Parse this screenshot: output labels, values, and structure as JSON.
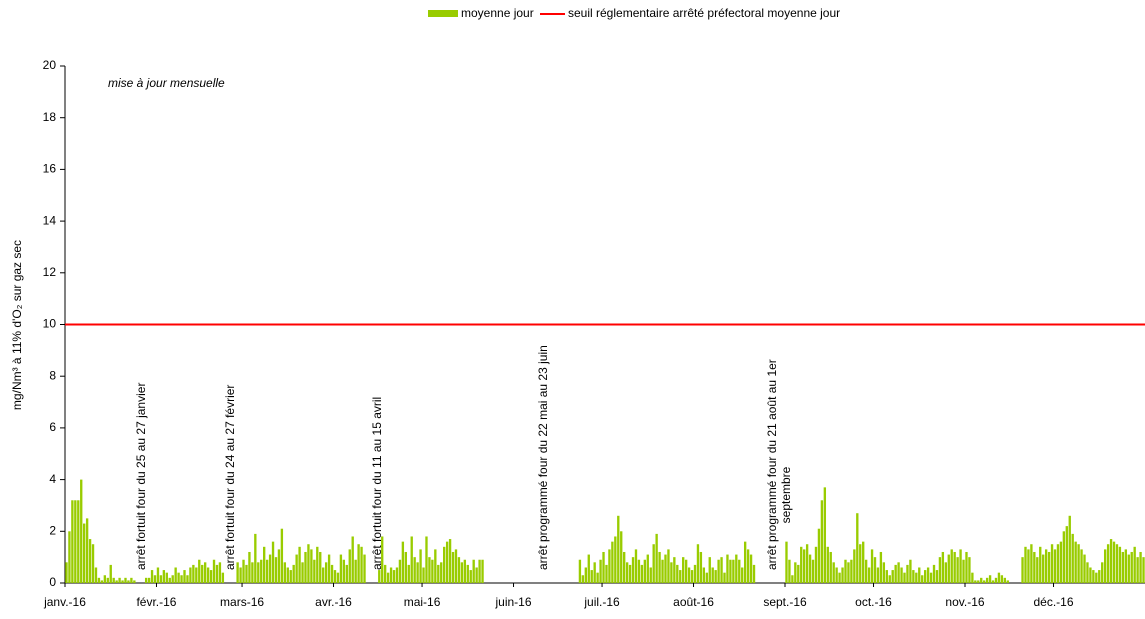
{
  "chart_data": {
    "type": "bar",
    "series": [
      {
        "name": "moyenne jour",
        "color": "#99cc00",
        "values": [
          0.8,
          2,
          3.2,
          3.2,
          3.2,
          4,
          2.3,
          2.5,
          1.7,
          1.5,
          0.6,
          0.2,
          0.1,
          0.3,
          0.2,
          0.7,
          0.2,
          0.1,
          0.2,
          0.1,
          0.2,
          0.1,
          0.2,
          0.1,
          0,
          0,
          0,
          0.2,
          0.2,
          0.5,
          0.3,
          0.6,
          0.3,
          0.5,
          0.4,
          0.2,
          0.3,
          0.6,
          0.4,
          0.3,
          0.5,
          0.3,
          0.6,
          0.7,
          0.6,
          0.9,
          0.7,
          0.8,
          0.6,
          0.5,
          0.9,
          0.7,
          0.8,
          0.4,
          0,
          0,
          0,
          0,
          0.8,
          0.6,
          0.9,
          0.7,
          1.2,
          0.8,
          1.9,
          0.8,
          0.9,
          1.4,
          0.9,
          1.1,
          1.6,
          1.0,
          1.3,
          2.1,
          0.8,
          0.6,
          0.5,
          0.7,
          1.1,
          1.4,
          0.8,
          1.2,
          1.5,
          1.3,
          0.9,
          1.4,
          1.2,
          0.6,
          0.8,
          1.1,
          0.7,
          0.5,
          0.4,
          1.1,
          0.9,
          0.7,
          1.3,
          1.8,
          0.9,
          1.5,
          1.4,
          1.1,
          0,
          0,
          0,
          0,
          0.5,
          1.8,
          0.7,
          0.4,
          0.6,
          0.5,
          0.6,
          0.9,
          1.6,
          1.2,
          0.7,
          1.8,
          1.0,
          0.8,
          1.3,
          0.6,
          1.8,
          1.0,
          0.9,
          1.3,
          0.7,
          0.8,
          1.4,
          1.6,
          1.7,
          1.2,
          1.3,
          1.0,
          0.8,
          0.9,
          0.7,
          0.5,
          0.9,
          0.6,
          0.9,
          0.9,
          0,
          0,
          0,
          0,
          0,
          0,
          0,
          0,
          0,
          0,
          0,
          0,
          0,
          0,
          0,
          0,
          0,
          0,
          0,
          0,
          0,
          0,
          0,
          0,
          0,
          0,
          0,
          0,
          0,
          0,
          0,
          0,
          0.9,
          0.3,
          0.6,
          1.1,
          0.5,
          0.8,
          0.4,
          0.9,
          1.2,
          0.7,
          1.3,
          1.6,
          1.8,
          2.6,
          2.0,
          1.2,
          0.8,
          0.7,
          1.0,
          1.3,
          0.9,
          0.7,
          0.9,
          1.1,
          0.6,
          1.5,
          1.9,
          1.2,
          0.9,
          1.1,
          1.3,
          0.8,
          1.0,
          0.7,
          0.5,
          1.0,
          0.9,
          0.6,
          0.5,
          0.7,
          1.5,
          1.2,
          0.6,
          0.4,
          1.0,
          0.6,
          0.5,
          0.9,
          1.0,
          0.4,
          1.1,
          0.9,
          0.9,
          1.1,
          0.9,
          0.6,
          1.6,
          1.3,
          1.1,
          0.7,
          0,
          0,
          0,
          0,
          0,
          0,
          0,
          0,
          0,
          0,
          1.6,
          0.9,
          0.3,
          0.8,
          0.7,
          1.4,
          1.3,
          1.5,
          1.1,
          0.9,
          1.4,
          2.1,
          3.2,
          3.7,
          1.4,
          1.2,
          0.8,
          0.6,
          0.4,
          0.6,
          0.9,
          0.8,
          0.9,
          1.3,
          2.7,
          1.5,
          1.6,
          0.9,
          0.6,
          1.3,
          1.0,
          0.6,
          1.2,
          0.8,
          0.5,
          0.3,
          0.5,
          0.7,
          0.8,
          0.6,
          0.4,
          0.7,
          0.9,
          0.5,
          0.4,
          0.6,
          0.3,
          0.5,
          0.6,
          0.4,
          0.7,
          0.5,
          1.0,
          1.2,
          0.8,
          1.1,
          1.3,
          1.2,
          1.0,
          1.3,
          0.9,
          1.2,
          1.0,
          0.4,
          0.1,
          0.1,
          0.2,
          0.1,
          0.2,
          0.3,
          0.1,
          0.2,
          0.4,
          0.3,
          0.2,
          0.1,
          0,
          0,
          0,
          0,
          1.0,
          1.4,
          1.3,
          1.5,
          1.2,
          1.0,
          1.4,
          1.1,
          1.3,
          1.2,
          1.5,
          1.3,
          1.5,
          1.6,
          2.0,
          2.2,
          2.6,
          1.9,
          1.6,
          1.5,
          1.3,
          1.1,
          0.8,
          0.6,
          0.5,
          0.4,
          0.5,
          0.8,
          1.3,
          1.5,
          1.7,
          1.6,
          1.5,
          1.4,
          1.2,
          1.3,
          1.1,
          1.2,
          1.4,
          1.0,
          1.2,
          1.0
        ]
      }
    ],
    "categories": [
      "janv.-16",
      null,
      null,
      null,
      null,
      null,
      null,
      null,
      null,
      null,
      null,
      null,
      null,
      null,
      null,
      null,
      null,
      null,
      null,
      null,
      null,
      null,
      null,
      null,
      null,
      null,
      null,
      null,
      null,
      null,
      null,
      "févr.-16",
      null,
      null,
      null,
      null,
      null,
      null,
      null,
      null,
      null,
      null,
      null,
      null,
      null,
      null,
      null,
      null,
      null,
      null,
      null,
      null,
      null,
      null,
      null,
      null,
      null,
      null,
      null,
      null,
      "mars-16",
      null,
      null,
      null,
      null,
      null,
      null,
      null,
      null,
      null,
      null,
      null,
      null,
      null,
      null,
      null,
      null,
      null,
      null,
      null,
      null,
      null,
      null,
      null,
      null,
      null,
      null,
      null,
      null,
      null,
      null,
      "avr.-16",
      null,
      null,
      null,
      null,
      null,
      null,
      null,
      null,
      null,
      null,
      null,
      null,
      null,
      null,
      null,
      null,
      null,
      null,
      null,
      null,
      null,
      null,
      null,
      null,
      null,
      null,
      null,
      null,
      null,
      "mai-16",
      null,
      null,
      null,
      null,
      null,
      null,
      null,
      null,
      null,
      null,
      null,
      null,
      null,
      null,
      null,
      null,
      null,
      null,
      null,
      null,
      null,
      null,
      null,
      null,
      null,
      null,
      null,
      null,
      null,
      null,
      "juin-16",
      null,
      null,
      null,
      null,
      null,
      null,
      null,
      null,
      null,
      null,
      null,
      null,
      null,
      null,
      null,
      null,
      null,
      null,
      null,
      null,
      null,
      null,
      null,
      null,
      null,
      null,
      null,
      null,
      null,
      "juil.-16",
      null,
      null,
      null,
      null,
      null,
      null,
      null,
      null,
      null,
      null,
      null,
      null,
      null,
      null,
      null,
      null,
      null,
      null,
      null,
      null,
      null,
      null,
      null,
      null,
      null,
      null,
      null,
      null,
      null,
      null,
      "août-16",
      null,
      null,
      null,
      null,
      null,
      null,
      null,
      null,
      null,
      null,
      null,
      null,
      null,
      null,
      null,
      null,
      null,
      null,
      null,
      null,
      null,
      null,
      null,
      null,
      null,
      null,
      null,
      null,
      null,
      null,
      "sept.-16",
      null,
      null,
      null,
      null,
      null,
      null,
      null,
      null,
      null,
      null,
      null,
      null,
      null,
      null,
      null,
      null,
      null,
      null,
      null,
      null,
      null,
      null,
      null,
      null,
      null,
      null,
      null,
      null,
      null,
      "oct.-16",
      null,
      null,
      null,
      null,
      null,
      null,
      null,
      null,
      null,
      null,
      null,
      null,
      null,
      null,
      null,
      null,
      null,
      null,
      null,
      null,
      null,
      null,
      null,
      null,
      null,
      null,
      null,
      null,
      null,
      null,
      "nov.-16",
      null,
      null,
      null,
      null,
      null,
      null,
      null,
      null,
      null,
      null,
      null,
      null,
      null,
      null,
      null,
      null,
      null,
      null,
      null,
      null,
      null,
      null,
      null,
      null,
      null,
      null,
      null,
      null,
      null,
      "déc.-16",
      null,
      null,
      null,
      null,
      null,
      null,
      null,
      null,
      null,
      null,
      null,
      null,
      null,
      null,
      null,
      null,
      null,
      null,
      null,
      null,
      null,
      null,
      null,
      null,
      null,
      null,
      null,
      null,
      null,
      null
    ],
    "threshold": {
      "name": "seuil réglementaire arrêté préfectoral moyenne jour",
      "value": 10,
      "color": "#ff0000"
    },
    "ylabel": "mg/Nm³ à 11% d'O₂ sur gaz sec",
    "ylim": [
      0,
      20
    ],
    "yticks": [
      0,
      2,
      4,
      6,
      8,
      10,
      12,
      14,
      16,
      18,
      20
    ],
    "note": "mise à jour mensuelle",
    "annotations": [
      [
        "arrêt fortuit four du 25 au 27 janvier"
      ],
      [
        "arrêt fortuit four du 24 au 27 février"
      ],
      [
        "arrêt fortuit four du 11 au 15 avril"
      ],
      [
        "arrêt programmé four du 22 mai au 23 juin"
      ],
      [
        "arrêt programmé four du 21 août au 1er",
        "septembre"
      ]
    ]
  }
}
